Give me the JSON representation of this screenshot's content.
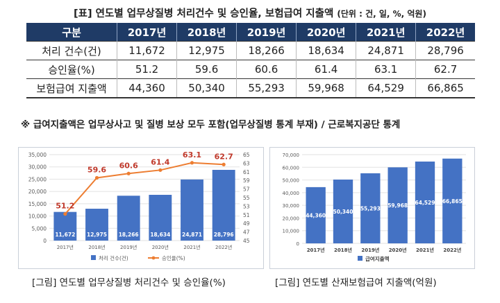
{
  "title": {
    "main": "[표] 연도별 업무상질병 처리건수 및 승인율, 보험급여 지출액",
    "unit": "(단위 : 건, 일, %, 억원)"
  },
  "table": {
    "header": [
      "구분",
      "2017년",
      "2018년",
      "2019년",
      "2020년",
      "2021년",
      "2022년"
    ],
    "rows": [
      {
        "label": "처리 건수(건)",
        "values": [
          "11,672",
          "12,975",
          "18,266",
          "18,634",
          "24,871",
          "28,796"
        ]
      },
      {
        "label": "승인율(%)",
        "values": [
          "51.2",
          "59.6",
          "60.6",
          "61.4",
          "63.1",
          "62.7"
        ]
      },
      {
        "label": "보험급여 지출액",
        "values": [
          "44,360",
          "50,340",
          "55,293",
          "59,968",
          "64,529",
          "66,865"
        ]
      }
    ]
  },
  "note": "※ 급여지출액은 업무상사고 및 질병 보상 모두 포함(업무상질병 통계 부재) / 근로복지공단 통계",
  "captions": {
    "left": "[그림] 연도별 업무상질병 처리건수 및 승인율(%)",
    "right": "[그림] 연도별 산재보험급여 지출액(억원)"
  },
  "colors": {
    "header_bg": "#1f3b66",
    "bar": "#4472c4",
    "line": "#ed7d31",
    "line_label": "#c0392b"
  },
  "chart_data": [
    {
      "type": "bar",
      "categories": [
        "2017년",
        "2018년",
        "2019년",
        "2020년",
        "2021년",
        "2022년"
      ],
      "series": [
        {
          "name": "처리 건수(건)",
          "values": [
            11672,
            12975,
            18266,
            18634,
            24871,
            28796
          ],
          "labels": [
            "11,672",
            "12,975",
            "18,266",
            "18,634",
            "24,871",
            "28,796"
          ],
          "axis": "left"
        },
        {
          "name": "승인율(%)",
          "type": "line",
          "values": [
            51.2,
            59.6,
            60.6,
            61.4,
            63.1,
            62.7
          ],
          "labels": [
            "51.2",
            "59.6",
            "60.6",
            "61.4",
            "63.1",
            "62.7"
          ],
          "axis": "right"
        }
      ],
      "ylim": [
        0,
        35000
      ],
      "yticks": [
        "0",
        "5,000",
        "10,000",
        "15,000",
        "20,000",
        "25,000",
        "30,000",
        "35,000"
      ],
      "y2lim": [
        45,
        65
      ],
      "y2ticks": [
        "45",
        "47",
        "49",
        "51",
        "53",
        "55",
        "57",
        "59",
        "61",
        "63",
        "65"
      ],
      "grid": true,
      "legend": "bottom"
    },
    {
      "type": "bar",
      "categories": [
        "2017년",
        "2018년",
        "2019년",
        "2020년",
        "2021년",
        "2022년"
      ],
      "series": [
        {
          "name": "급여지출액",
          "values": [
            44360,
            50340,
            55293,
            59968,
            64529,
            66865
          ],
          "labels": [
            "44,360",
            "50,340",
            "55,293",
            "59,968",
            "64,529",
            "66,865"
          ]
        }
      ],
      "ylim": [
        0,
        70000
      ],
      "yticks": [
        "0",
        "10,000",
        "20,000",
        "30,000",
        "40,000",
        "50,000",
        "60,000",
        "70,000"
      ],
      "grid": true,
      "legend": "bottom"
    }
  ]
}
